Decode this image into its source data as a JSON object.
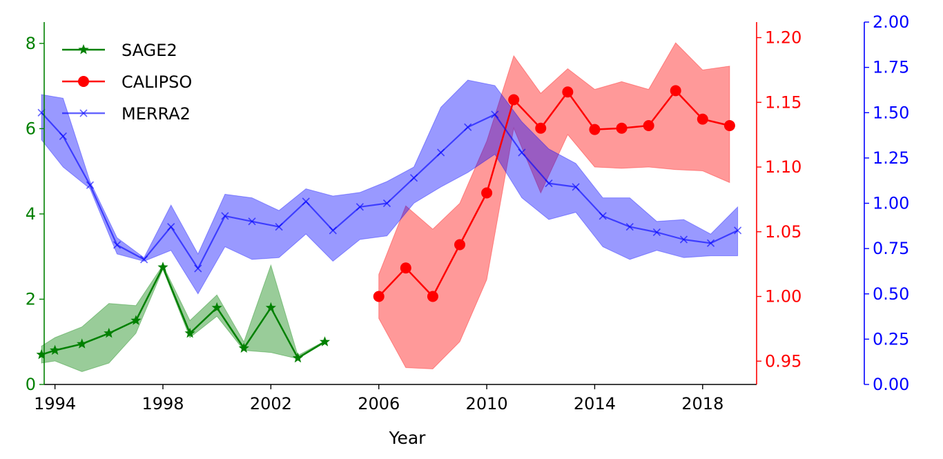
{
  "chart_data": {
    "type": "line",
    "title": "",
    "xlabel": "Year",
    "xlim": [
      1993.6,
      2020.0
    ],
    "xticks": [
      1994,
      1998,
      2002,
      2006,
      2010,
      2014,
      2018
    ],
    "axes": {
      "left": {
        "color": "#008000",
        "ylim": [
          0,
          8.5
        ],
        "ticks": [
          0,
          2,
          4,
          6,
          8
        ],
        "tick_labels": [
          "0",
          "2",
          "4",
          "6",
          "8"
        ]
      },
      "right1": {
        "color": "#ff0000",
        "ylim": [
          0.932,
          1.212
        ],
        "ticks": [
          0.95,
          1.0,
          1.05,
          1.1,
          1.15,
          1.2
        ],
        "tick_labels": [
          "0.95",
          "1.00",
          "1.05",
          "1.10",
          "1.15",
          "1.20"
        ]
      },
      "right2": {
        "color": "#0000ff",
        "ylim": [
          0,
          2.0
        ],
        "ticks": [
          0,
          0.25,
          0.5,
          0.75,
          1.0,
          1.25,
          1.5,
          1.75,
          2.0
        ],
        "tick_labels": [
          "0.00",
          "0.25",
          "0.50",
          "0.75",
          "1.00",
          "1.25",
          "1.50",
          "1.75",
          "2.00"
        ]
      }
    },
    "legend": {
      "placement": "top-left",
      "entries": [
        "SAGE2",
        "CALIPSO",
        "MERRA2"
      ]
    },
    "grid": false,
    "series": [
      {
        "name": "SAGE2",
        "axis": "left",
        "color": "#008000",
        "marker": "star",
        "x": [
          1993.5,
          1994,
          1995,
          1996,
          1997,
          1998,
          1999,
          2000,
          2001,
          2002,
          2003,
          2004
        ],
        "y": [
          0.7,
          0.8,
          0.95,
          1.2,
          1.5,
          2.75,
          1.2,
          1.8,
          0.85,
          1.8,
          0.62,
          1.0
        ],
        "upper": [
          0.9,
          1.1,
          1.35,
          1.9,
          1.85,
          2.8,
          1.5,
          2.1,
          1.0,
          2.8,
          0.68,
          1.02
        ],
        "lower": [
          0.5,
          0.55,
          0.3,
          0.5,
          1.2,
          2.7,
          1.1,
          1.6,
          0.8,
          0.75,
          0.6,
          0.98
        ]
      },
      {
        "name": "CALIPSO",
        "axis": "right1",
        "color": "#ff0000",
        "marker": "circle",
        "x": [
          2006,
          2007,
          2008,
          2009,
          2010,
          2011,
          2012,
          2013,
          2014,
          2015,
          2016,
          2017,
          2018,
          2019
        ],
        "y": [
          1.0,
          1.022,
          1.0,
          1.04,
          1.08,
          1.152,
          1.13,
          1.158,
          1.129,
          1.13,
          1.132,
          1.159,
          1.137,
          1.132
        ],
        "upper": [
          1.017,
          1.07,
          1.052,
          1.072,
          1.12,
          1.186,
          1.157,
          1.176,
          1.16,
          1.166,
          1.16,
          1.196,
          1.175,
          1.178
        ],
        "lower": [
          0.983,
          0.945,
          0.944,
          0.965,
          1.013,
          1.13,
          1.08,
          1.125,
          1.1,
          1.099,
          1.1,
          1.098,
          1.097,
          1.088
        ]
      },
      {
        "name": "MERRA2",
        "axis": "right2",
        "color": "#0000ff",
        "marker": "x",
        "x": [
          1993.5,
          1994.3,
          1995.3,
          1996.3,
          1997.3,
          1998.3,
          1999.3,
          2000.3,
          2001.3,
          2002.3,
          2003.3,
          2004.3,
          2005.3,
          2006.3,
          2007.3,
          2008.3,
          2009.3,
          2010.3,
          2011.3,
          2012.3,
          2013.3,
          2014.3,
          2015.3,
          2016.3,
          2017.3,
          2018.3,
          2019.3
        ],
        "y": [
          1.5,
          1.37,
          1.1,
          0.77,
          0.69,
          0.87,
          0.64,
          0.93,
          0.9,
          0.87,
          1.01,
          0.85,
          0.98,
          1.0,
          1.14,
          1.28,
          1.42,
          1.49,
          1.28,
          1.11,
          1.09,
          0.93,
          0.87,
          0.84,
          0.8,
          0.78,
          0.85
        ],
        "upper": [
          1.6,
          1.58,
          1.12,
          0.81,
          0.7,
          0.99,
          0.72,
          1.05,
          1.03,
          0.96,
          1.08,
          1.04,
          1.06,
          1.12,
          1.2,
          1.53,
          1.68,
          1.65,
          1.45,
          1.3,
          1.22,
          1.03,
          1.03,
          0.9,
          0.91,
          0.83,
          0.98
        ],
        "lower": [
          1.35,
          1.2,
          1.08,
          0.72,
          0.68,
          0.74,
          0.5,
          0.76,
          0.69,
          0.7,
          0.83,
          0.68,
          0.8,
          0.82,
          1.0,
          1.09,
          1.17,
          1.27,
          1.03,
          0.91,
          0.95,
          0.76,
          0.69,
          0.74,
          0.7,
          0.71,
          0.71
        ]
      }
    ]
  }
}
